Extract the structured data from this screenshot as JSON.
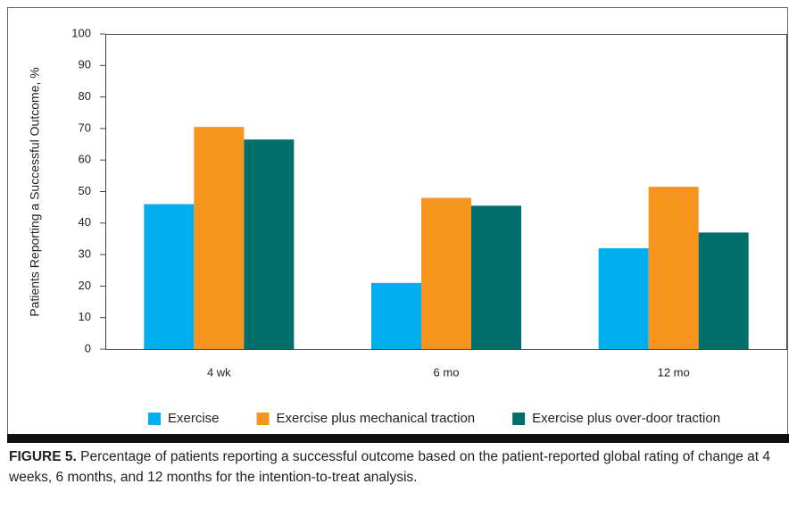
{
  "chart_data": {
    "type": "bar",
    "ylabel": "Patients Reporting a Successful Outcome, %",
    "categories": [
      "4 wk",
      "6 mo",
      "12 mo"
    ],
    "series": [
      {
        "name": "Exercise",
        "color": "#00aeef",
        "values": [
          46,
          21,
          32
        ]
      },
      {
        "name": "Exercise plus mechanical traction",
        "color": "#f7941d",
        "values": [
          70.5,
          48,
          51.5
        ]
      },
      {
        "name": "Exercise plus over-door traction",
        "color": "#006f6b",
        "values": [
          66.5,
          45.5,
          37
        ]
      }
    ],
    "ylim": [
      0,
      100
    ],
    "yticks": [
      0,
      10,
      20,
      30,
      40,
      50,
      60,
      70,
      80,
      90,
      100
    ],
    "grid": false,
    "legend": "bottom",
    "caption_label": "FIGURE 5.",
    "caption": "Percentage of patients reporting a successful outcome based on the patient-reported global rating of change at 4 weeks, 6 months, and 12 months for the intention-to-treat analysis."
  }
}
